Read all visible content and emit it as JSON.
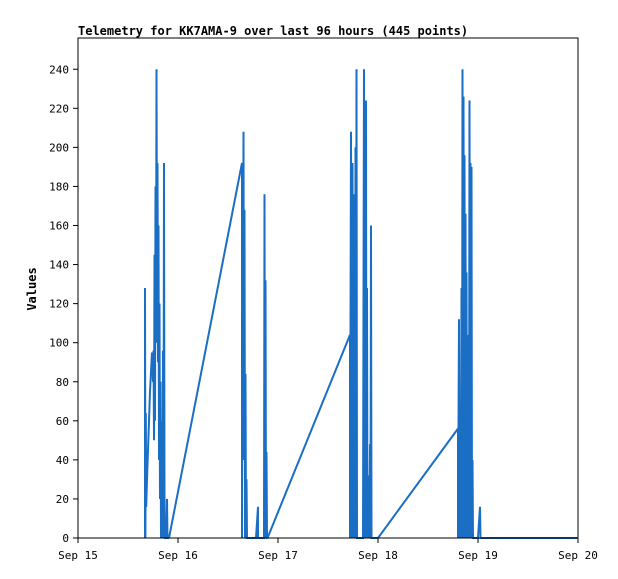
{
  "chart_data": {
    "type": "line",
    "title": "Telemetry for KK7AMA-9 over last 96 hours (445 points)",
    "xlabel": "",
    "ylabel": "Values",
    "xlim": [
      0,
      5
    ],
    "ylim": [
      0,
      256
    ],
    "x_ticks": [
      {
        "value": 0,
        "label": "Sep 15"
      },
      {
        "value": 1,
        "label": "Sep 16"
      },
      {
        "value": 2,
        "label": "Sep 17"
      },
      {
        "value": 3,
        "label": "Sep 18"
      },
      {
        "value": 4,
        "label": "Sep 19"
      },
      {
        "value": 5,
        "label": "Sep 20"
      }
    ],
    "y_ticks": [
      0,
      20,
      40,
      60,
      80,
      100,
      120,
      140,
      160,
      180,
      200,
      220,
      240
    ],
    "grid": false,
    "line_color": "#1a6ec4",
    "series": [
      {
        "x": [
          0.67,
          0.67,
          0.674,
          0.678,
          0.682,
          0.69,
          0.7,
          0.71,
          0.72,
          0.73,
          0.74,
          0.75,
          0.755,
          0.76,
          0.765,
          0.77,
          0.775,
          0.78,
          0.785,
          0.79,
          0.795,
          0.8,
          0.805,
          0.81,
          0.815,
          0.82,
          0.825,
          0.83,
          0.835,
          0.84,
          0.845,
          0.85,
          0.855,
          0.86,
          0.865,
          0.87,
          0.875,
          0.88,
          0.885,
          0.89,
          0.895,
          0.9,
          0.905,
          0.91
        ],
        "y": [
          0,
          128,
          0,
          64,
          16,
          30,
          45,
          60,
          75,
          85,
          95,
          80,
          96,
          50,
          145,
          60,
          180,
          100,
          240,
          140,
          192,
          90,
          160,
          40,
          120,
          20,
          80,
          0,
          60,
          10,
          0,
          96,
          0,
          192,
          20,
          0,
          0,
          10,
          0,
          20,
          0,
          0,
          0,
          0
        ]
      },
      {
        "x": [
          0.91,
          1.64,
          1.64,
          1.645,
          1.65,
          1.655,
          1.66,
          1.665,
          1.67,
          1.675,
          1.68,
          1.685,
          1.69,
          1.7,
          1.72,
          1.75,
          1.78,
          1.8,
          1.8,
          1.84,
          1.86,
          1.865,
          1.87,
          1.875,
          1.88,
          1.885,
          1.89,
          1.895
        ],
        "y": [
          0,
          192,
          0,
          192,
          100,
          208,
          40,
          168,
          0,
          84,
          0,
          30,
          0,
          0,
          0,
          0,
          0,
          16,
          0,
          0,
          0,
          176,
          0,
          132,
          0,
          44,
          0,
          0
        ]
      },
      {
        "x": [
          1.895,
          2.72,
          2.72,
          2.73,
          2.74,
          2.745,
          2.75,
          2.755,
          2.76,
          2.765,
          2.77,
          2.775,
          2.78,
          2.785,
          2.79,
          2.795,
          2.8,
          2.85,
          2.86,
          2.865,
          2.87,
          2.875,
          2.88,
          2.885,
          2.89,
          2.895,
          2.9,
          2.905,
          2.91,
          2.915,
          2.92,
          2.925,
          2.93,
          2.935,
          2.94,
          2.95,
          2.96,
          2.97,
          2.98,
          2.985,
          2.99,
          3.0
        ],
        "y": [
          0,
          104,
          0,
          208,
          0,
          192,
          0,
          176,
          88,
          120,
          0,
          200,
          0,
          240,
          0,
          0,
          0,
          0,
          240,
          0,
          208,
          0,
          224,
          0,
          128,
          0,
          32,
          0,
          20,
          0,
          48,
          0,
          160,
          0,
          0,
          0,
          0,
          0,
          0,
          0,
          0,
          0
        ]
      },
      {
        "x": [
          3.0,
          3.8,
          3.8,
          3.81,
          3.815,
          3.82,
          3.825,
          3.83,
          3.835,
          3.84,
          3.845,
          3.85,
          3.855,
          3.86,
          3.865,
          3.87,
          3.875,
          3.88,
          3.885,
          3.89,
          3.895,
          3.9,
          3.905,
          3.91,
          3.915,
          3.92,
          3.925,
          3.93,
          3.935,
          3.94,
          3.945,
          3.95,
          3.955,
          3.96,
          3.965,
          3.97,
          3.975,
          3.98,
          4.0,
          4.02,
          4.025,
          4.03,
          5.0
        ],
        "y": [
          0,
          56,
          0,
          112,
          26,
          0,
          32,
          0,
          128,
          0,
          240,
          0,
          226,
          60,
          196,
          0,
          166,
          20,
          136,
          0,
          104,
          0,
          74,
          0,
          224,
          0,
          192,
          0,
          190,
          0,
          40,
          0,
          0,
          0,
          0,
          0,
          0,
          0,
          0,
          16,
          0,
          0,
          0
        ]
      }
    ]
  }
}
